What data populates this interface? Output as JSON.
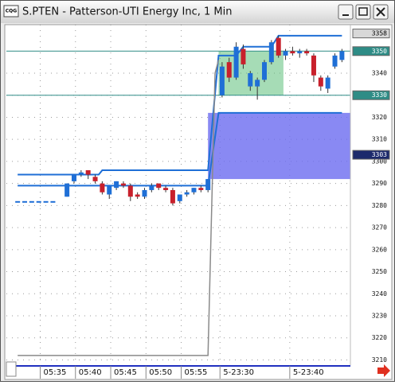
{
  "window": {
    "icon_text": "CQG",
    "title": "S.PTEN - Patterson-UTI Energy Inc, 1 Min"
  },
  "chart_data": {
    "type": "candlestick",
    "xlim": [
      -1.6,
      47.2
    ],
    "ylim": [
      3208,
      3362
    ],
    "yticks": [
      3210,
      3220,
      3230,
      3240,
      3250,
      3260,
      3270,
      3280,
      3290,
      3300,
      3310,
      3320,
      3330,
      3340
    ],
    "xticks": [
      {
        "value": 3.2,
        "label": "05:35"
      },
      {
        "value": 8.2,
        "label": "05:40"
      },
      {
        "value": 13.2,
        "label": "05:45"
      },
      {
        "value": 18.2,
        "label": "05:50"
      },
      {
        "value": 23.2,
        "label": "05:55"
      },
      {
        "value": 28.7,
        "label": "5-23:30"
      },
      {
        "value": 38.6,
        "label": "5-23:40"
      }
    ],
    "grid": true,
    "up_color": "#1f6fd6",
    "down_color": "#c8202c",
    "x": [
      0,
      1,
      2,
      3,
      4,
      5,
      7,
      8,
      9,
      10,
      11,
      12,
      13,
      14,
      15,
      16,
      17,
      18,
      19,
      20,
      21,
      22,
      23,
      24,
      25,
      26,
      27,
      29,
      30,
      31,
      32,
      33,
      34,
      35,
      36,
      37,
      38,
      39,
      40,
      41,
      42,
      43,
      44,
      45,
      46
    ],
    "open": [
      3282,
      3282,
      3282,
      3282,
      3282,
      3282,
      3284,
      3291,
      3294,
      3296,
      3293,
      3290,
      3285,
      3288,
      3290,
      3289,
      3285,
      3284,
      3287,
      3290,
      3288,
      3287,
      3282,
      3285,
      3286,
      3288,
      3287,
      3330,
      3345,
      3338,
      3351,
      3334,
      3334,
      3337,
      3345,
      3356,
      3348,
      3350,
      3349,
      3350,
      3348,
      3338,
      3333,
      3343,
      3346
    ],
    "high": [
      3282,
      3282,
      3282,
      3282,
      3282,
      3282,
      3290,
      3294,
      3296,
      3296,
      3294,
      3291,
      3289,
      3291,
      3291,
      3290,
      3286,
      3288,
      3290,
      3290,
      3289,
      3288,
      3285,
      3287,
      3288,
      3289,
      3292,
      3345,
      3347,
      3354,
      3353,
      3341,
      3338,
      3346,
      3355,
      3357,
      3351,
      3352,
      3351,
      3351,
      3349,
      3339,
      3339,
      3349,
      3351
    ],
    "low": [
      3282,
      3282,
      3282,
      3282,
      3282,
      3282,
      3284,
      3290,
      3293,
      3292,
      3290,
      3285,
      3283,
      3287,
      3288,
      3282,
      3283,
      3283,
      3286,
      3287,
      3286,
      3280,
      3281,
      3284,
      3285,
      3286,
      3286,
      3329,
      3336,
      3337,
      3342,
      3332,
      3328,
      3336,
      3344,
      3347,
      3346,
      3348,
      3347,
      3348,
      3336,
      3332,
      3331,
      3342,
      3345
    ],
    "close": [
      3282,
      3282,
      3282,
      3282,
      3282,
      3282,
      3290,
      3294,
      3295,
      3294,
      3291,
      3286,
      3289,
      3291,
      3289,
      3284,
      3284,
      3287,
      3289,
      3288,
      3287,
      3281,
      3285,
      3286,
      3288,
      3287,
      3292,
      3343,
      3338,
      3352,
      3344,
      3340,
      3337,
      3345,
      3354,
      3348,
      3350,
      3349,
      3350,
      3349,
      3339,
      3334,
      3338,
      3348,
      3350
    ],
    "lines": [
      {
        "color": "#1f6fd6",
        "x": [
          0,
          11.5,
          12,
          27,
          28.5,
          31,
          32,
          36,
          37,
          46
        ],
        "values": [
          3294,
          3294,
          3296,
          3296,
          3348,
          3348,
          3352,
          3352,
          3357,
          3357
        ]
      },
      {
        "color": "#1f6fd6",
        "x": [
          0,
          27,
          28.5,
          46
        ],
        "values": [
          3289,
          3289,
          3322,
          3322
        ]
      },
      {
        "color": "#8a8a8a",
        "x": [
          0,
          27,
          28,
          28.5
        ],
        "values": [
          3212,
          3212,
          3340,
          3346
        ]
      }
    ],
    "levels": [
      {
        "value": 3350,
        "color": "#2e8c86"
      },
      {
        "value": 3330,
        "color": "#2e8c86"
      }
    ],
    "zones": [
      {
        "x": [
          28.5,
          37.7
        ],
        "y": [
          3330,
          3350
        ],
        "color": "#5cc07a",
        "opacity": 0.55
      },
      {
        "x": [
          27,
          47.2
        ],
        "y": [
          3292,
          3322
        ],
        "color": "#6c6cf0",
        "opacity": 0.8
      }
    ],
    "markers": [
      {
        "value": 3358,
        "color": "#d8d8d8",
        "text_color": "#000000"
      },
      {
        "value": 3350,
        "color": "#2e8c86",
        "text_color": "#ffffff"
      },
      {
        "value": 3330,
        "color": "#2e8c86",
        "text_color": "#ffffff"
      },
      {
        "value": 3303,
        "color": "#1c2a6c",
        "text_color": "#ffffff"
      }
    ]
  }
}
